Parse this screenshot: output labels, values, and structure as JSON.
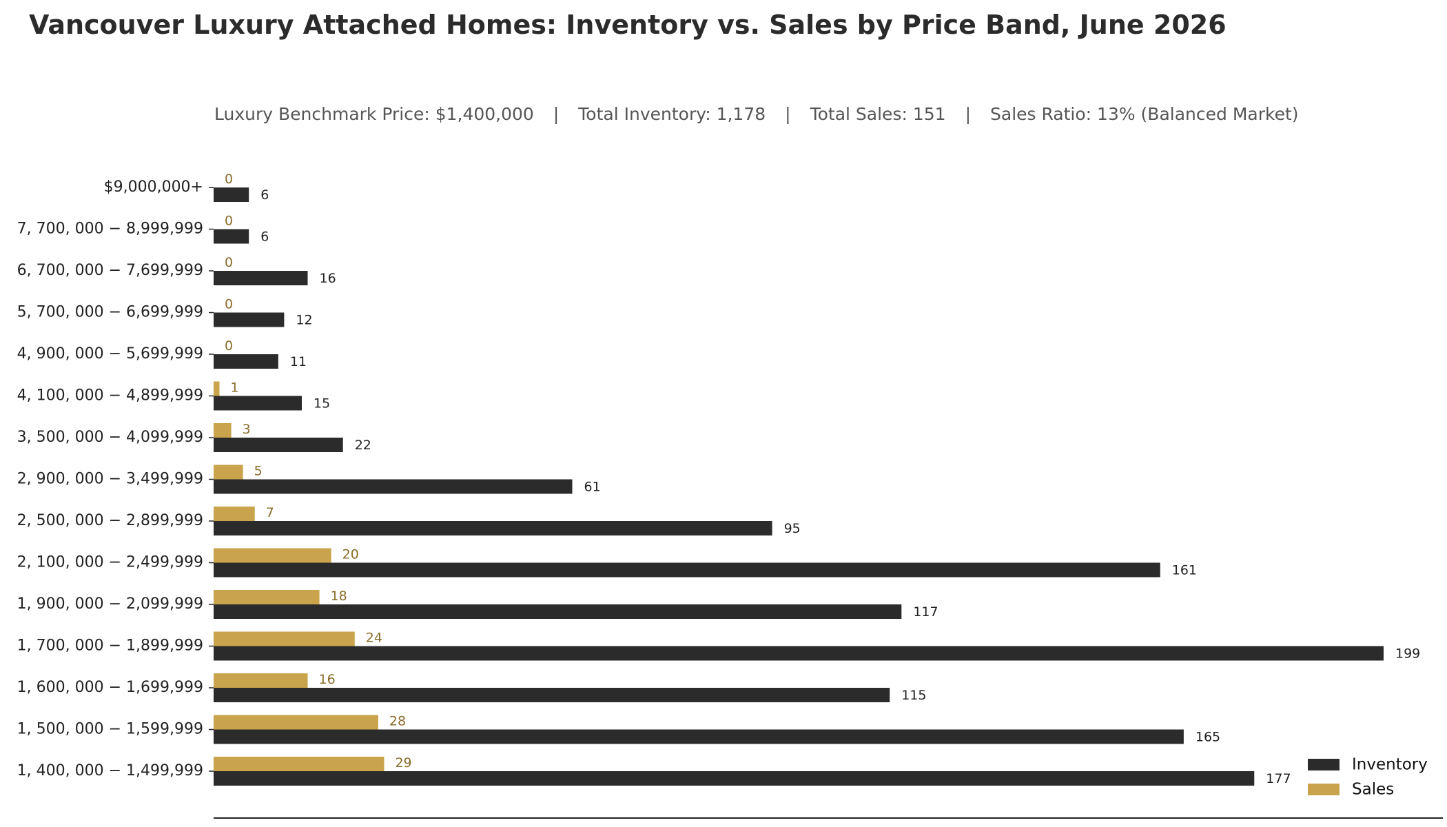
{
  "chart_data": {
    "type": "bar",
    "orientation": "horizontal",
    "title": "Vancouver Luxury Attached Homes: Inventory vs. Sales by Price Band, June 2026",
    "subtitle": [
      "Luxury Benchmark Price: $1,400,000",
      "Total Inventory: 1,178",
      "Total Sales: 151",
      "Sales Ratio: 13% (Balanced Market)"
    ],
    "subtitle_separator": "|",
    "categories": [
      "$9,000,000+",
      "7, 700, 000 − 8,999,999",
      "6, 700, 000 − 7,699,999",
      "5, 700, 000 − 6,699,999",
      "4, 900, 000 − 5,699,999",
      "4, 100, 000 − 4,899,999",
      "3, 500, 000 − 4,099,999",
      "2, 900, 000 − 3,499,999",
      "2, 500, 000 − 2,899,999",
      "2, 100, 000 − 2,499,999",
      "1, 900, 000 − 2,099,999",
      "1, 700, 000 − 1,899,999",
      "1, 600, 000 − 1,699,999",
      "1, 500, 000 − 1,599,999",
      "1, 400, 000 − 1,499,999"
    ],
    "series": [
      {
        "name": "Inventory",
        "color": "#2b2b2b",
        "values": [
          6,
          6,
          16,
          12,
          11,
          15,
          22,
          61,
          95,
          161,
          117,
          199,
          115,
          165,
          177
        ]
      },
      {
        "name": "Sales",
        "color": "#c9a44c",
        "values": [
          0,
          0,
          0,
          0,
          0,
          1,
          3,
          5,
          7,
          20,
          18,
          24,
          16,
          28,
          29
        ]
      }
    ],
    "xlim": [
      0,
      199
    ],
    "grid": false,
    "legend_position": "bottom-right",
    "sales_label_color": "#8a6d2a"
  }
}
